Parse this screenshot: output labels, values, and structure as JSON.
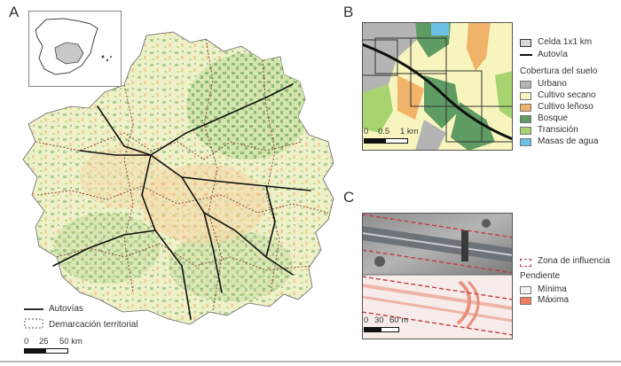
{
  "panels": {
    "a": {
      "letter": "A",
      "legend": {
        "highway": "Autovías",
        "boundary": "Demarcación territorial"
      },
      "scale": {
        "ticks": [
          "0",
          "25",
          "50 km"
        ]
      }
    },
    "b": {
      "letter": "B",
      "legend": {
        "cell": "Celda 1x1 km",
        "highway": "Autovía",
        "cover_title": "Cobertura del suelo",
        "classes": [
          {
            "label": "Urbano",
            "color": "#b4b4b4"
          },
          {
            "label": "Cultivo secano",
            "color": "#f7f5bd"
          },
          {
            "label": "Cultivo leñoso",
            "color": "#f1b26a"
          },
          {
            "label": "Bosque",
            "color": "#5f9c63"
          },
          {
            "label": "Transición",
            "color": "#a7d46f"
          },
          {
            "label": "Masas de agua",
            "color": "#6cc0e6"
          }
        ]
      },
      "scale": {
        "ticks": [
          "0",
          "0.5",
          "1 km"
        ]
      }
    },
    "c": {
      "letter": "C",
      "legend": {
        "zone": "Zona de influencia",
        "slope_title": "Pendiente",
        "min": "Mínima",
        "max": "Máxima",
        "min_color": "#f4f4f4",
        "max_color": "#ef7d5f"
      },
      "scale": {
        "ticks": [
          "0",
          "30",
          "60 m"
        ]
      }
    }
  },
  "colors": {
    "map_base": "#eef0c8",
    "forest": "#7eaf5e",
    "crop": "#eec58c",
    "highway": "#111111",
    "boundary": "#8a4a3a",
    "zone_line": "#c23a4a"
  }
}
